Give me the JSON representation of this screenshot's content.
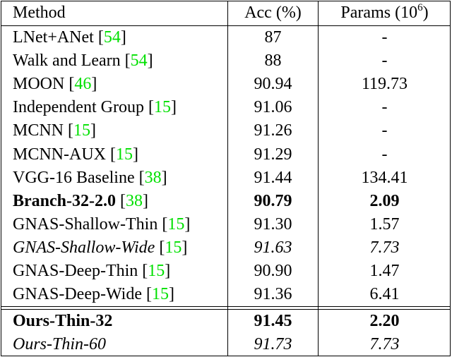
{
  "table": {
    "header": {
      "method": "Method",
      "acc": "Acc (%)",
      "params": "Params",
      "params_unit": [
        "(10",
        "6",
        ")"
      ]
    },
    "citation_brackets": [
      "[",
      "]"
    ],
    "citation_color": "#00e000",
    "rows": [
      {
        "method": "LNet+ANet",
        "cite": "54",
        "acc": "87",
        "params": "-",
        "style": "normal"
      },
      {
        "method": "Walk and Learn",
        "cite": "54",
        "acc": "88",
        "params": "-",
        "style": "normal"
      },
      {
        "method": "MOON",
        "cite": "46",
        "acc": "90.94",
        "params": "119.73",
        "style": "normal"
      },
      {
        "method": "Independent Group",
        "cite": "15",
        "acc": "91.06",
        "params": "-",
        "style": "normal"
      },
      {
        "method": "MCNN",
        "cite": "15",
        "acc": "91.26",
        "params": "-",
        "style": "normal"
      },
      {
        "method": "MCNN-AUX",
        "cite": "15",
        "acc": "91.29",
        "params": "-",
        "style": "normal"
      },
      {
        "method": "VGG-16 Baseline",
        "cite": "38",
        "acc": "91.44",
        "params": "134.41",
        "style": "normal"
      },
      {
        "method": "Branch-32-2.0",
        "cite": "38",
        "acc": "90.79",
        "params": "2.09",
        "style": "bold"
      },
      {
        "method": "GNAS-Shallow-Thin",
        "cite": "15",
        "acc": "91.30",
        "params": "1.57",
        "style": "normal"
      },
      {
        "method": "GNAS-Shallow-Wide",
        "cite": "15",
        "acc": "91.63",
        "params": "7.73",
        "style": "italic"
      },
      {
        "method": "GNAS-Deep-Thin",
        "cite": "15",
        "acc": "90.90",
        "params": "1.47",
        "style": "normal"
      },
      {
        "method": "GNAS-Deep-Wide",
        "cite": "15",
        "acc": "91.36",
        "params": "6.41",
        "style": "normal"
      },
      {
        "method": "Ours-Thin-32",
        "cite": null,
        "acc": "91.45",
        "params": "2.20",
        "style": "bold"
      },
      {
        "method": "Ours-Thin-60",
        "cite": null,
        "acc": "91.73",
        "params": "7.73",
        "style": "italic"
      }
    ]
  }
}
